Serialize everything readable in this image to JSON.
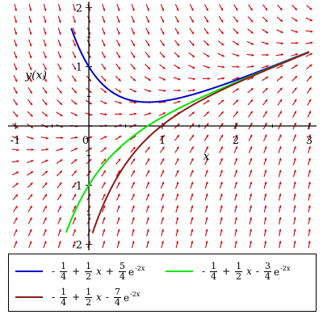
{
  "chart_data": {
    "type": "line",
    "title": "",
    "xlabel": "x",
    "ylabel": "y(x)",
    "xlim": [
      -1.1,
      3.1
    ],
    "ylim": [
      -2.1,
      2.1
    ],
    "x_ticks": [
      "-1",
      "0",
      "1",
      "2",
      "3"
    ],
    "y_ticks": [
      "2",
      "1",
      "-1",
      "-2"
    ],
    "direction_field": {
      "equation": "dy/dx = x - 2y",
      "arrow_color": "#d40000"
    },
    "series": [
      {
        "name_parts": [
          [
            "-",
            "1",
            "4"
          ],
          [
            "+",
            "1",
            "2",
            "x"
          ],
          [
            "+",
            "5",
            "4",
            "e",
            "-2x"
          ]
        ],
        "color": "#0000c8",
        "c": 1.25,
        "x_range": [
          -0.24,
          3.0
        ]
      },
      {
        "name_parts": [
          [
            "-",
            "1",
            "4"
          ],
          [
            "+",
            "1",
            "2",
            "x"
          ],
          [
            "-",
            "3",
            "4",
            "e",
            "-2x"
          ]
        ],
        "color": "#00e600",
        "c": -0.75,
        "x_range": [
          -0.31,
          3.0
        ]
      },
      {
        "name_parts": [
          [
            "-",
            "1",
            "4"
          ],
          [
            "+",
            "1",
            "2",
            "x"
          ],
          [
            "-",
            "7",
            "4",
            "e",
            "-2x"
          ]
        ],
        "color": "#8b1a1a",
        "c": -1.75,
        "x_range": [
          0.05,
          3.0
        ]
      }
    ]
  }
}
